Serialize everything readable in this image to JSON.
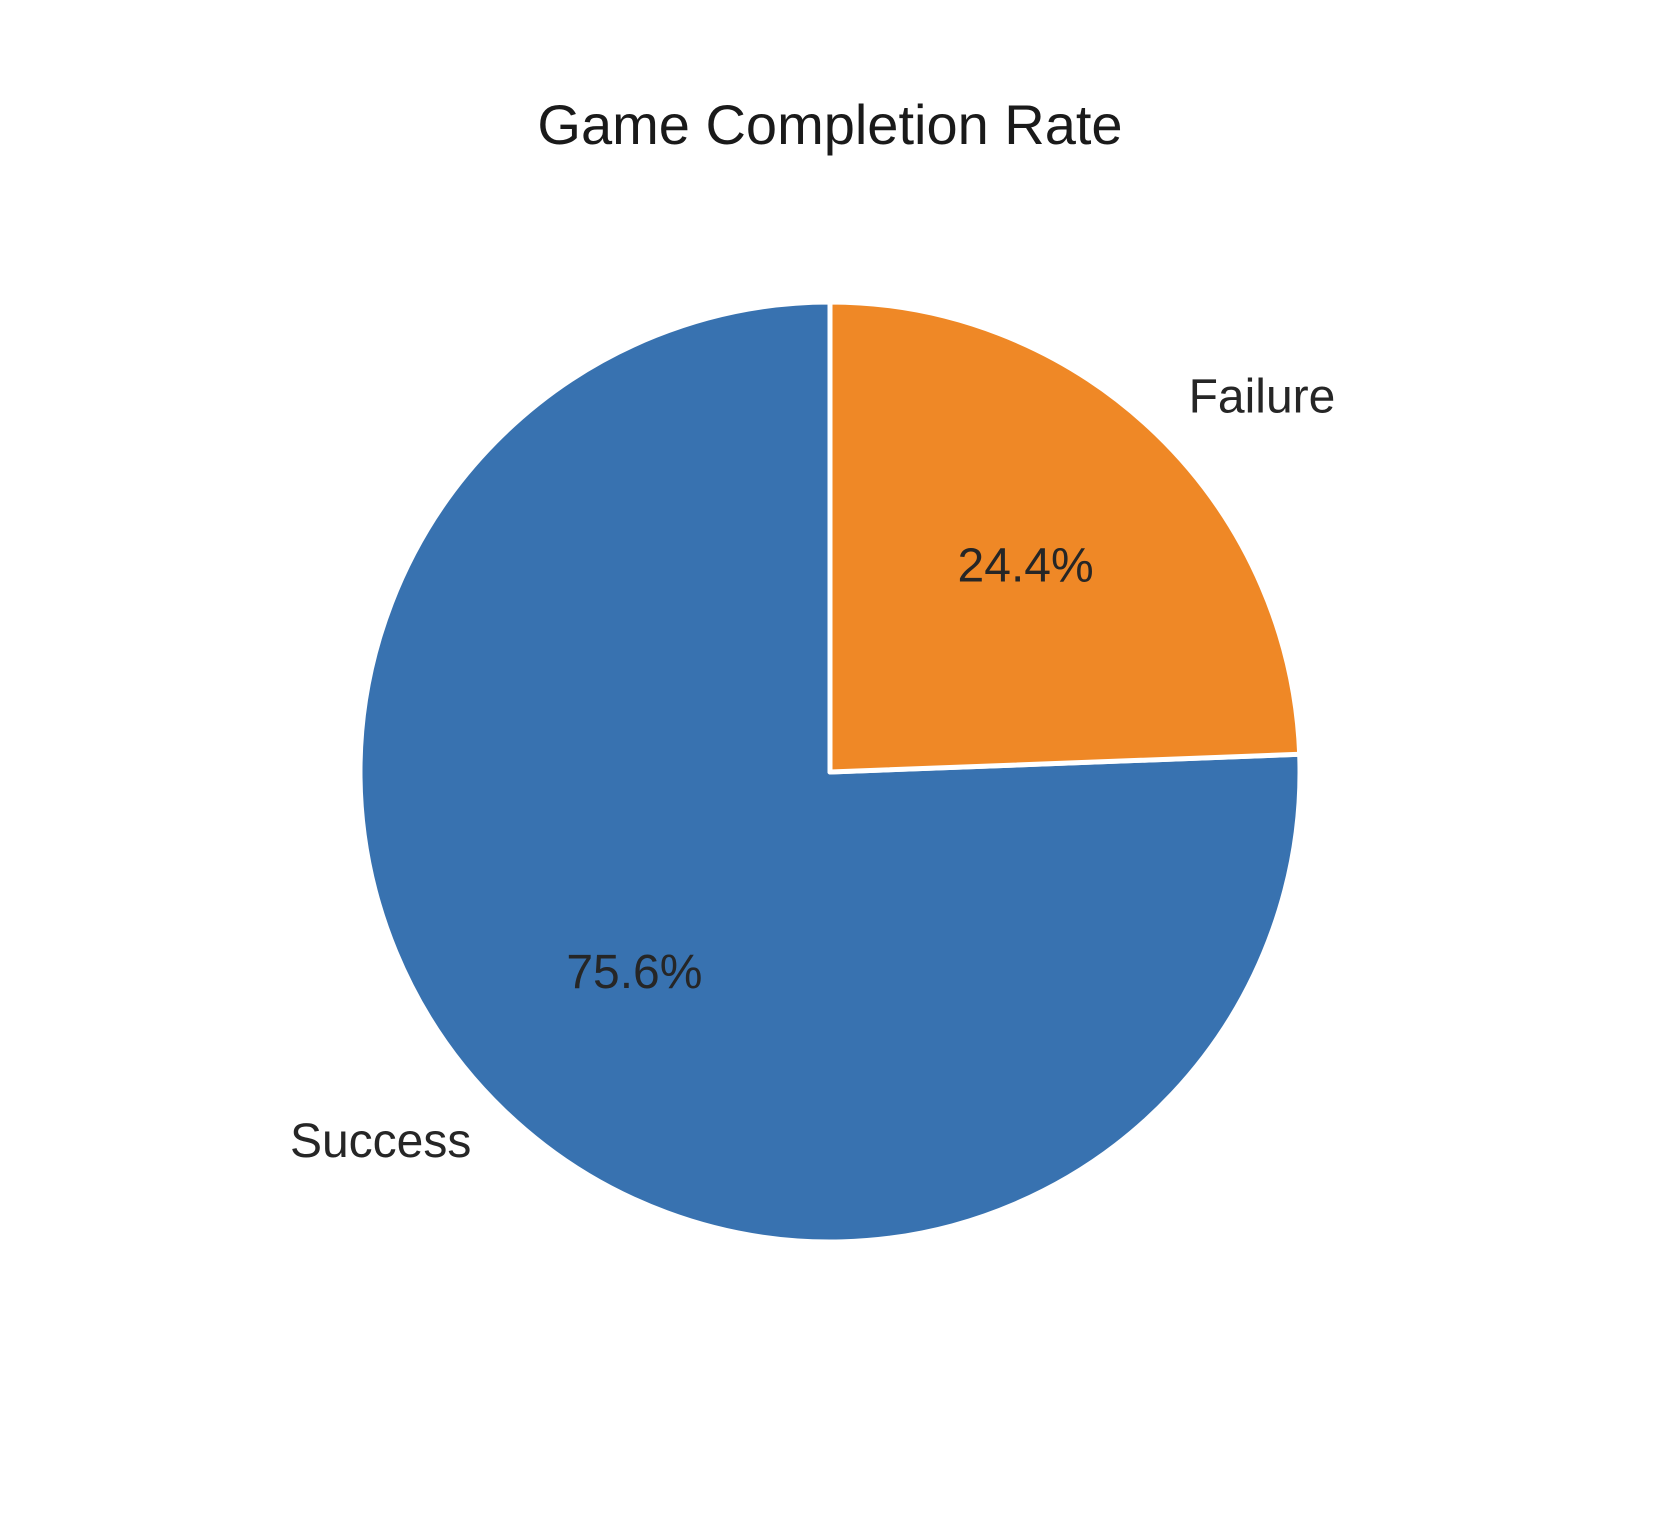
{
  "chart_data": {
    "type": "pie",
    "title": "Game Completion Rate",
    "start_angle_deg": 90,
    "direction": "counterclockwise",
    "slices": [
      {
        "label": "Success",
        "value": 75.6,
        "pct_label": "75.6%",
        "color": "#3872b0"
      },
      {
        "label": "Failure",
        "value": 24.4,
        "pct_label": "24.4%",
        "color": "#ef8826"
      }
    ],
    "edge_color": "#ffffff"
  }
}
